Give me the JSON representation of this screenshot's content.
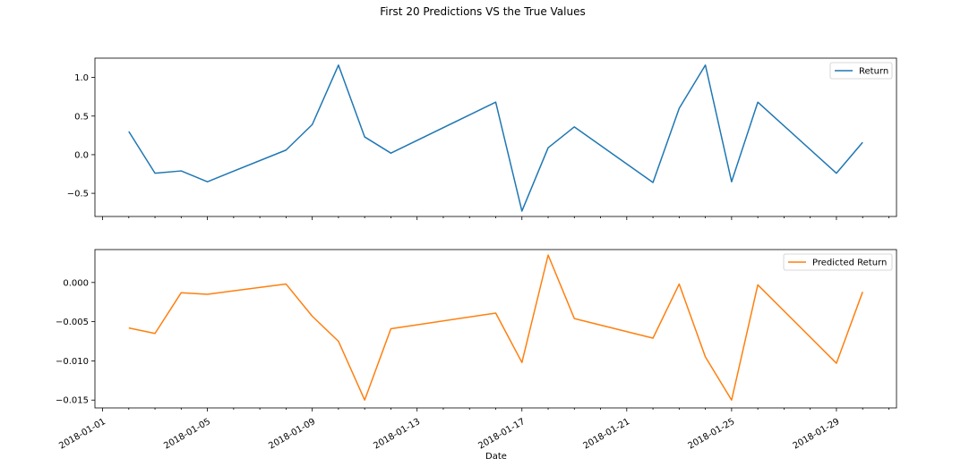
{
  "chart_data": {
    "type": "line",
    "title": "First 20 Predictions VS the True Values",
    "xlabel": "Date",
    "x_ticks": [
      "2018-01-01",
      "2018-01-05",
      "2018-01-09",
      "2018-01-13",
      "2018-01-17",
      "2018-01-21",
      "2018-01-25",
      "2018-01-29"
    ],
    "x": [
      "2018-01-02",
      "2018-01-03",
      "2018-01-04",
      "2018-01-05",
      "2018-01-08",
      "2018-01-09",
      "2018-01-10",
      "2018-01-11",
      "2018-01-12",
      "2018-01-16",
      "2018-01-17",
      "2018-01-18",
      "2018-01-19",
      "2018-01-22",
      "2018-01-23",
      "2018-01-24",
      "2018-01-25",
      "2018-01-26",
      "2018-01-29",
      "2018-01-30"
    ],
    "xlim": [
      "2017-12-31T17:00",
      "2018-01-31T07:00"
    ],
    "panels": [
      {
        "series": [
          {
            "name": "Return",
            "color": "#1f77b4",
            "values": [
              0.3,
              -0.24,
              -0.21,
              -0.35,
              0.06,
              0.39,
              1.16,
              0.23,
              0.02,
              0.68,
              -0.73,
              0.09,
              0.36,
              -0.36,
              0.6,
              1.16,
              -0.35,
              0.68,
              -0.24,
              0.16
            ]
          }
        ],
        "ylim": [
          -0.8,
          1.25
        ],
        "yticks": [
          -0.5,
          0.0,
          0.5,
          1.0
        ],
        "ytick_labels": [
          "−0.5",
          "0.0",
          "0.5",
          "1.0"
        ],
        "legend": "top-right"
      },
      {
        "series": [
          {
            "name": "Predicted Return",
            "color": "#ff7f0e",
            "values": [
              -0.0058,
              -0.0065,
              -0.0013,
              -0.0015,
              -0.0002,
              -0.0043,
              -0.0075,
              -0.015,
              -0.0059,
              -0.0039,
              -0.0102,
              0.0035,
              -0.0046,
              -0.0071,
              -0.0002,
              -0.0095,
              -0.015,
              -0.0003,
              -0.0103,
              -0.0012
            ]
          }
        ],
        "ylim": [
          -0.016,
          0.0042
        ],
        "yticks": [
          -0.015,
          -0.01,
          -0.005,
          0.0
        ],
        "ytick_labels": [
          "−0.015",
          "−0.010",
          "−0.005",
          "0.000"
        ],
        "legend": "top-right"
      }
    ]
  }
}
